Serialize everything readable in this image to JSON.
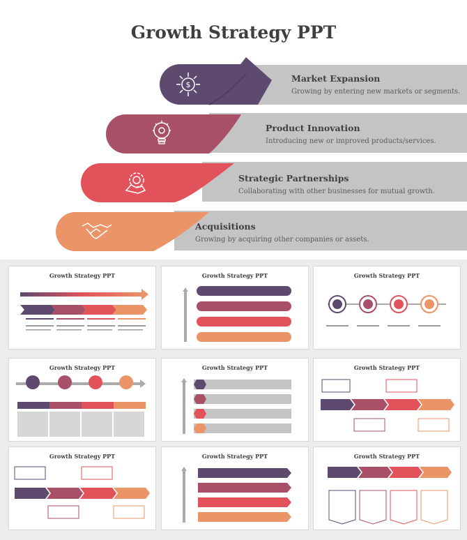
{
  "hero": {
    "title": "Growth Strategy PPT",
    "rows": [
      {
        "title": "Market Expansion",
        "desc": "Growing by entering new markets or segments.",
        "icon": "dollar-arrows-icon",
        "color": "#5f4a6f"
      },
      {
        "title": "Product Innovation",
        "desc": "Introducing new or improved products/services.",
        "icon": "lightbulb-gear-icon",
        "color": "#a85067"
      },
      {
        "title": "Strategic Partnerships",
        "desc": "Collaborating with other businesses for mutual growth.",
        "icon": "gear-hand-icon",
        "color": "#e2525a"
      },
      {
        "title": "Acquisitions",
        "desc": "Growing by acquiring other companies or assets.",
        "icon": "handshake-icon",
        "color": "#ea9467"
      }
    ]
  },
  "thumbs": {
    "title": "Growth Strategy PPT",
    "colors": [
      "#5f4a6f",
      "#a85067",
      "#e2525a",
      "#ea9467"
    ]
  }
}
